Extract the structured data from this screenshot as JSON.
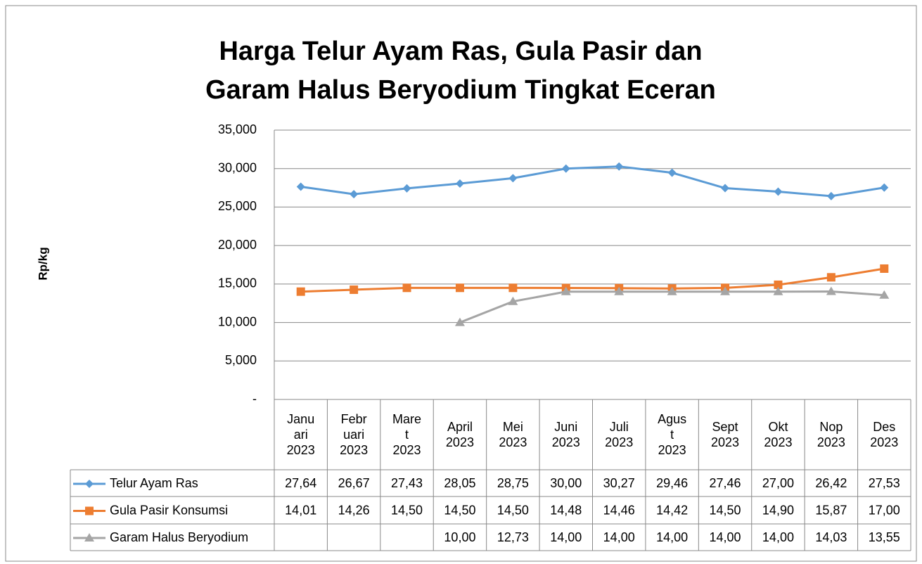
{
  "chart_data": {
    "type": "line",
    "title": "Harga Telur Ayam Ras, Gula Pasir dan Garam Halus Beryodium Tingkat Eceran",
    "y_label": "Rp/kg",
    "categories": [
      "Januari 2023",
      "Februari 2023",
      "Maret 2023",
      "April 2023",
      "Mei 2023",
      "Juni 2023",
      "Juli 2023",
      "Agust 2023",
      "Sept 2023",
      "Okt 2023",
      "Nop 2023",
      "Des 2023"
    ],
    "series": [
      {
        "name": "Telur Ayam Ras",
        "color": "#5b9bd5",
        "marker": "diamond",
        "values": [
          27640,
          26670,
          27430,
          28050,
          28750,
          30000,
          30270,
          29460,
          27460,
          27000,
          26420,
          27530
        ],
        "value_labels": [
          "27,64",
          "26,67",
          "27,43",
          "28,05",
          "28,75",
          "30,00",
          "30,27",
          "29,46",
          "27,46",
          "27,00",
          "26,42",
          "27,53"
        ]
      },
      {
        "name": "Gula Pasir Konsumsi",
        "color": "#ed7d31",
        "marker": "square",
        "values": [
          14010,
          14260,
          14500,
          14500,
          14500,
          14480,
          14460,
          14420,
          14500,
          14900,
          15870,
          17000
        ],
        "value_labels": [
          "14,01",
          "14,26",
          "14,50",
          "14,50",
          "14,50",
          "14,48",
          "14,46",
          "14,42",
          "14,50",
          "14,90",
          "15,87",
          "17,00"
        ]
      },
      {
        "name": "Garam Halus Beryodium",
        "color": "#a5a5a5",
        "marker": "triangle",
        "values": [
          null,
          null,
          null,
          10000,
          12730,
          14000,
          14000,
          14000,
          14000,
          14000,
          14030,
          13550
        ],
        "value_labels": [
          null,
          null,
          null,
          "10,00",
          "12,73",
          "14,00",
          "14,00",
          "14,00",
          "14,00",
          "14,00",
          "14,03",
          "13,55"
        ]
      }
    ],
    "ylim": [
      0,
      35000
    ],
    "yticks": [
      {
        "value": 0,
        "label": "-"
      },
      {
        "value": 5000,
        "label": "5,000"
      },
      {
        "value": 10000,
        "label": "10,000"
      },
      {
        "value": 15000,
        "label": "15,000"
      },
      {
        "value": 20000,
        "label": "20,000"
      },
      {
        "value": 25000,
        "label": "25,000"
      },
      {
        "value": 30000,
        "label": "30,000"
      },
      {
        "value": 35000,
        "label": "35,000"
      }
    ],
    "grid": true
  }
}
